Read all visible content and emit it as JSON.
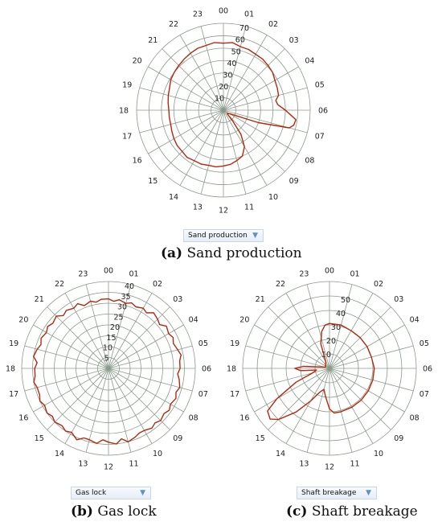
{
  "chart_data": [
    {
      "type": "polar-line",
      "directions": [
        "00",
        "01",
        "02",
        "03",
        "04",
        "05",
        "06",
        "07",
        "08",
        "09",
        "10",
        "11",
        "12",
        "13",
        "14",
        "15",
        "16",
        "17",
        "18",
        "19",
        "20",
        "21",
        "22",
        "23"
      ],
      "radial_ticks": [
        10,
        20,
        30,
        40,
        50,
        60,
        70
      ],
      "rlim": [
        0,
        70
      ],
      "grid": true,
      "series": [
        {
          "color": "#b5280d",
          "points": [
            [
              0,
              54
            ],
            [
              0.5,
              55
            ],
            [
              1,
              53
            ],
            [
              1.5,
              53
            ],
            [
              2,
              52
            ],
            [
              2.5,
              52
            ],
            [
              3,
              51
            ],
            [
              3.5,
              50
            ],
            [
              4,
              48
            ],
            [
              4.5,
              47
            ],
            [
              5,
              46
            ],
            [
              5.3,
              43
            ],
            [
              5.6,
              44
            ],
            [
              6,
              50
            ],
            [
              6.3,
              55
            ],
            [
              6.5,
              59
            ],
            [
              6.8,
              58
            ],
            [
              7,
              55
            ],
            [
              7.3,
              30
            ],
            [
              7.6,
              10
            ],
            [
              7.9,
              6
            ],
            [
              8.3,
              5
            ],
            [
              8.7,
              4
            ],
            [
              9,
              5
            ],
            [
              9.3,
              12
            ],
            [
              9.6,
              24
            ],
            [
              10,
              34
            ],
            [
              10.5,
              40
            ],
            [
              11,
              42
            ],
            [
              11.5,
              44
            ],
            [
              12,
              45
            ],
            [
              12.5,
              46
            ],
            [
              13,
              46
            ],
            [
              13.5,
              47
            ],
            [
              14,
              47
            ],
            [
              14.5,
              48
            ],
            [
              15,
              47
            ],
            [
              15.5,
              47
            ],
            [
              16,
              46
            ],
            [
              16.5,
              45
            ],
            [
              17,
              44
            ],
            [
              17.5,
              44
            ],
            [
              18,
              44
            ],
            [
              18.5,
              45
            ],
            [
              19,
              46
            ],
            [
              19.5,
              47
            ],
            [
              20,
              49
            ],
            [
              20.5,
              50
            ],
            [
              21,
              51
            ],
            [
              21.5,
              52
            ],
            [
              22,
              53
            ],
            [
              22.5,
              54
            ],
            [
              23,
              54
            ],
            [
              23.5,
              55
            ]
          ]
        }
      ],
      "legend_dropdown": "Sand production",
      "caption_letter": "(a)",
      "caption_text": " Sand production"
    },
    {
      "type": "polar-line",
      "directions": [
        "00",
        "01",
        "02",
        "03",
        "04",
        "05",
        "06",
        "07",
        "08",
        "09",
        "10",
        "11",
        "12",
        "13",
        "14",
        "15",
        "16",
        "17",
        "18",
        "19",
        "20",
        "21",
        "22",
        "23"
      ],
      "radial_ticks": [
        5,
        10,
        15,
        20,
        25,
        30,
        35,
        40
      ],
      "rlim": [
        0,
        40
      ],
      "grid": true,
      "series": [
        {
          "color": "#b5280d",
          "points": [
            [
              0,
              32
            ],
            [
              0.3,
              31
            ],
            [
              0.6,
              32
            ],
            [
              1,
              31
            ],
            [
              1.3,
              32
            ],
            [
              1.6,
              31
            ],
            [
              2,
              32
            ],
            [
              2.3,
              31
            ],
            [
              2.6,
              33
            ],
            [
              3,
              32
            ],
            [
              3.3,
              31
            ],
            [
              3.6,
              33
            ],
            [
              4,
              32
            ],
            [
              4.3,
              33
            ],
            [
              4.6,
              32
            ],
            [
              5,
              33
            ],
            [
              5.3,
              34
            ],
            [
              5.6,
              33
            ],
            [
              6,
              33
            ],
            [
              6.3,
              32
            ],
            [
              6.6,
              33
            ],
            [
              7,
              34
            ],
            [
              7.3,
              33
            ],
            [
              7.6,
              34
            ],
            [
              8,
              33
            ],
            [
              8.3,
              34
            ],
            [
              8.6,
              33
            ],
            [
              9,
              34
            ],
            [
              9.3,
              33
            ],
            [
              9.6,
              34
            ],
            [
              10,
              33
            ],
            [
              10.3,
              33
            ],
            [
              10.6,
              34
            ],
            [
              11,
              35
            ],
            [
              11.3,
              33
            ],
            [
              11.6,
              35
            ],
            [
              12,
              34
            ],
            [
              12.3,
              33
            ],
            [
              12.6,
              35
            ],
            [
              13,
              34
            ],
            [
              13.3,
              34
            ],
            [
              13.6,
              36
            ],
            [
              14,
              34
            ],
            [
              14.3,
              35
            ],
            [
              14.6,
              34
            ],
            [
              15,
              35
            ],
            [
              15.3,
              34
            ],
            [
              15.6,
              35
            ],
            [
              16,
              34
            ],
            [
              16.3,
              35
            ],
            [
              16.6,
              34
            ],
            [
              17,
              34
            ],
            [
              17.3,
              35
            ],
            [
              17.6,
              34
            ],
            [
              18,
              34
            ],
            [
              18.3,
              33
            ],
            [
              18.6,
              35
            ],
            [
              19,
              34
            ],
            [
              19.3,
              33
            ],
            [
              19.6,
              34
            ],
            [
              20,
              33
            ],
            [
              20.3,
              34
            ],
            [
              20.6,
              33
            ],
            [
              21,
              34
            ],
            [
              21.3,
              32
            ],
            [
              21.6,
              33
            ],
            [
              22,
              32
            ],
            [
              22.3,
              33
            ],
            [
              22.6,
              31
            ],
            [
              23,
              32
            ],
            [
              23.3,
              31
            ],
            [
              23.6,
              32
            ]
          ]
        }
      ],
      "legend_dropdown": "Gas lock",
      "caption_letter": "(b)",
      "caption_text": " Gas lock"
    },
    {
      "type": "polar-line",
      "directions": [
        "00",
        "01",
        "02",
        "03",
        "04",
        "05",
        "06",
        "07",
        "08",
        "09",
        "10",
        "11",
        "12",
        "13",
        "14",
        "15",
        "16",
        "17",
        "18",
        "19",
        "20",
        "21",
        "22",
        "23"
      ],
      "radial_ticks": [
        10,
        20,
        30,
        40,
        50
      ],
      "rlim": [
        0,
        60
      ],
      "grid": true,
      "series": [
        {
          "color": "#b5280d",
          "points": [
            [
              0,
              31
            ],
            [
              1,
              31
            ],
            [
              2,
              30
            ],
            [
              3,
              30
            ],
            [
              4,
              30
            ],
            [
              5,
              30
            ],
            [
              6,
              31
            ],
            [
              7,
              31
            ],
            [
              8,
              31
            ],
            [
              9,
              31
            ],
            [
              10,
              31
            ],
            [
              11,
              31
            ],
            [
              11.6,
              31
            ],
            [
              12,
              28
            ],
            [
              12.5,
              20
            ],
            [
              13,
              15
            ],
            [
              13.5,
              18
            ],
            [
              14,
              26
            ],
            [
              14.5,
              38
            ],
            [
              15,
              50
            ],
            [
              15.3,
              54
            ],
            [
              15.7,
              52
            ],
            [
              16,
              42
            ],
            [
              16.5,
              25
            ],
            [
              17,
              12
            ],
            [
              17.5,
              9
            ],
            [
              17.7,
              20
            ],
            [
              18,
              24
            ],
            [
              18.3,
              18
            ],
            [
              18.6,
              6
            ],
            [
              19,
              3
            ],
            [
              20,
              3
            ],
            [
              21,
              4
            ],
            [
              22,
              5
            ],
            [
              22.7,
              18
            ],
            [
              23.2,
              26
            ],
            [
              23.6,
              30
            ]
          ]
        }
      ],
      "legend_dropdown": "Shaft breakage",
      "caption_letter": "(c)",
      "caption_text": " Shaft breakage"
    }
  ]
}
